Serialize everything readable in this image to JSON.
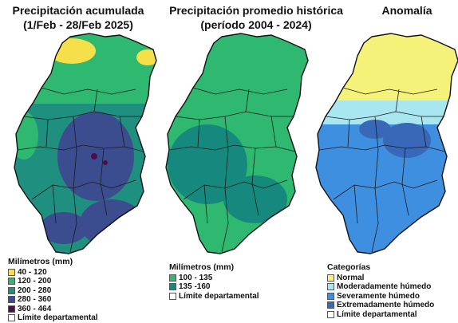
{
  "titles": {
    "map1_line1": "Precipitación acumulada",
    "map1_line2": "(1/Feb - 28/Feb 2025)",
    "map2_line1": "Precipitación promedio histórica",
    "map2_line2": "(período 2004 - 2024)",
    "map3_line1": "Anomalía"
  },
  "legend_accumulated": {
    "heading": "Milímetros (mm)",
    "items": [
      {
        "label": "40 - 120",
        "color": "#f5e04a"
      },
      {
        "label": "120 - 200",
        "color": "#2fb870"
      },
      {
        "label": "200 - 280",
        "color": "#1f8f80"
      },
      {
        "label": "280 - 360",
        "color": "#3b4d8f"
      },
      {
        "label": "360 - 464",
        "color": "#4a0f4a"
      }
    ],
    "boundary_label": "Límite departamental"
  },
  "legend_historical": {
    "heading": "Milímetros (mm)",
    "items": [
      {
        "label": "100 - 135",
        "color": "#2fb870"
      },
      {
        "label": "135 -160",
        "color": "#16897e"
      }
    ],
    "boundary_label": "Límite departamental"
  },
  "legend_anomaly": {
    "heading": "Categorías",
    "items": [
      {
        "label": "Normal",
        "color": "#f5f27a"
      },
      {
        "label": "Moderadamente húmedo",
        "color": "#a8e6f0"
      },
      {
        "label": "Severamente húmedo",
        "color": "#3f8fe0"
      },
      {
        "label": "Extremadamente húmedo",
        "color": "#3a68b8"
      }
    ],
    "boundary_label": "Límite departamental"
  },
  "colors": {
    "boundary": "#1a1a1a",
    "outline": "#111111"
  }
}
